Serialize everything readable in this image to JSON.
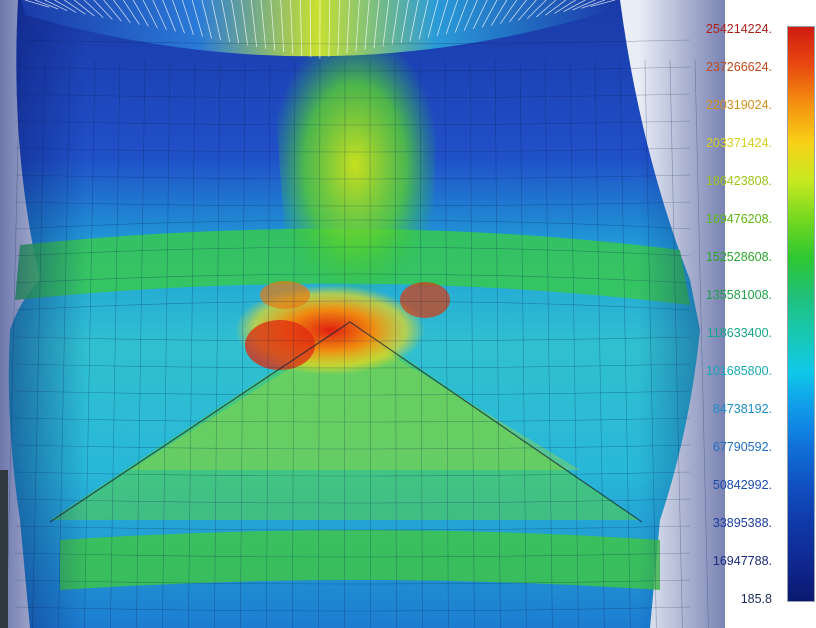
{
  "legend": {
    "labels": [
      {
        "text": "254214224.",
        "color": "#b02018"
      },
      {
        "text": "237266624.",
        "color": "#c04a1a"
      },
      {
        "text": "220319024.",
        "color": "#d4901c"
      },
      {
        "text": "203371424.",
        "color": "#d8d020"
      },
      {
        "text": "186423808.",
        "color": "#9cc418"
      },
      {
        "text": "169476208.",
        "color": "#5cb818"
      },
      {
        "text": "152528608.",
        "color": "#28a828"
      },
      {
        "text": "135581008.",
        "color": "#20a04a"
      },
      {
        "text": "118633400.",
        "color": "#18a48a"
      },
      {
        "text": "101685800.",
        "color": "#18a8b8"
      },
      {
        "text": "84738192.",
        "color": "#1c8cc8"
      },
      {
        "text": "67790592.",
        "color": "#1c6cc0"
      },
      {
        "text": "50842992.",
        "color": "#1c4cb0"
      },
      {
        "text": "33895388.",
        "color": "#1a3aa0"
      },
      {
        "text": "16947788.",
        "color": "#1a2a80"
      },
      {
        "text": "185.8",
        "color": "#1a2a5c"
      }
    ],
    "scale_colors": [
      "#d01a10",
      "#e84a10",
      "#f49010",
      "#f8d018",
      "#c8e820",
      "#78d820",
      "#30c830",
      "#20c078",
      "#18c8b0",
      "#10c8e8",
      "#1098e8",
      "#1070d8",
      "#1050c0",
      "#1038a8",
      "#102890",
      "#0a1870"
    ]
  }
}
